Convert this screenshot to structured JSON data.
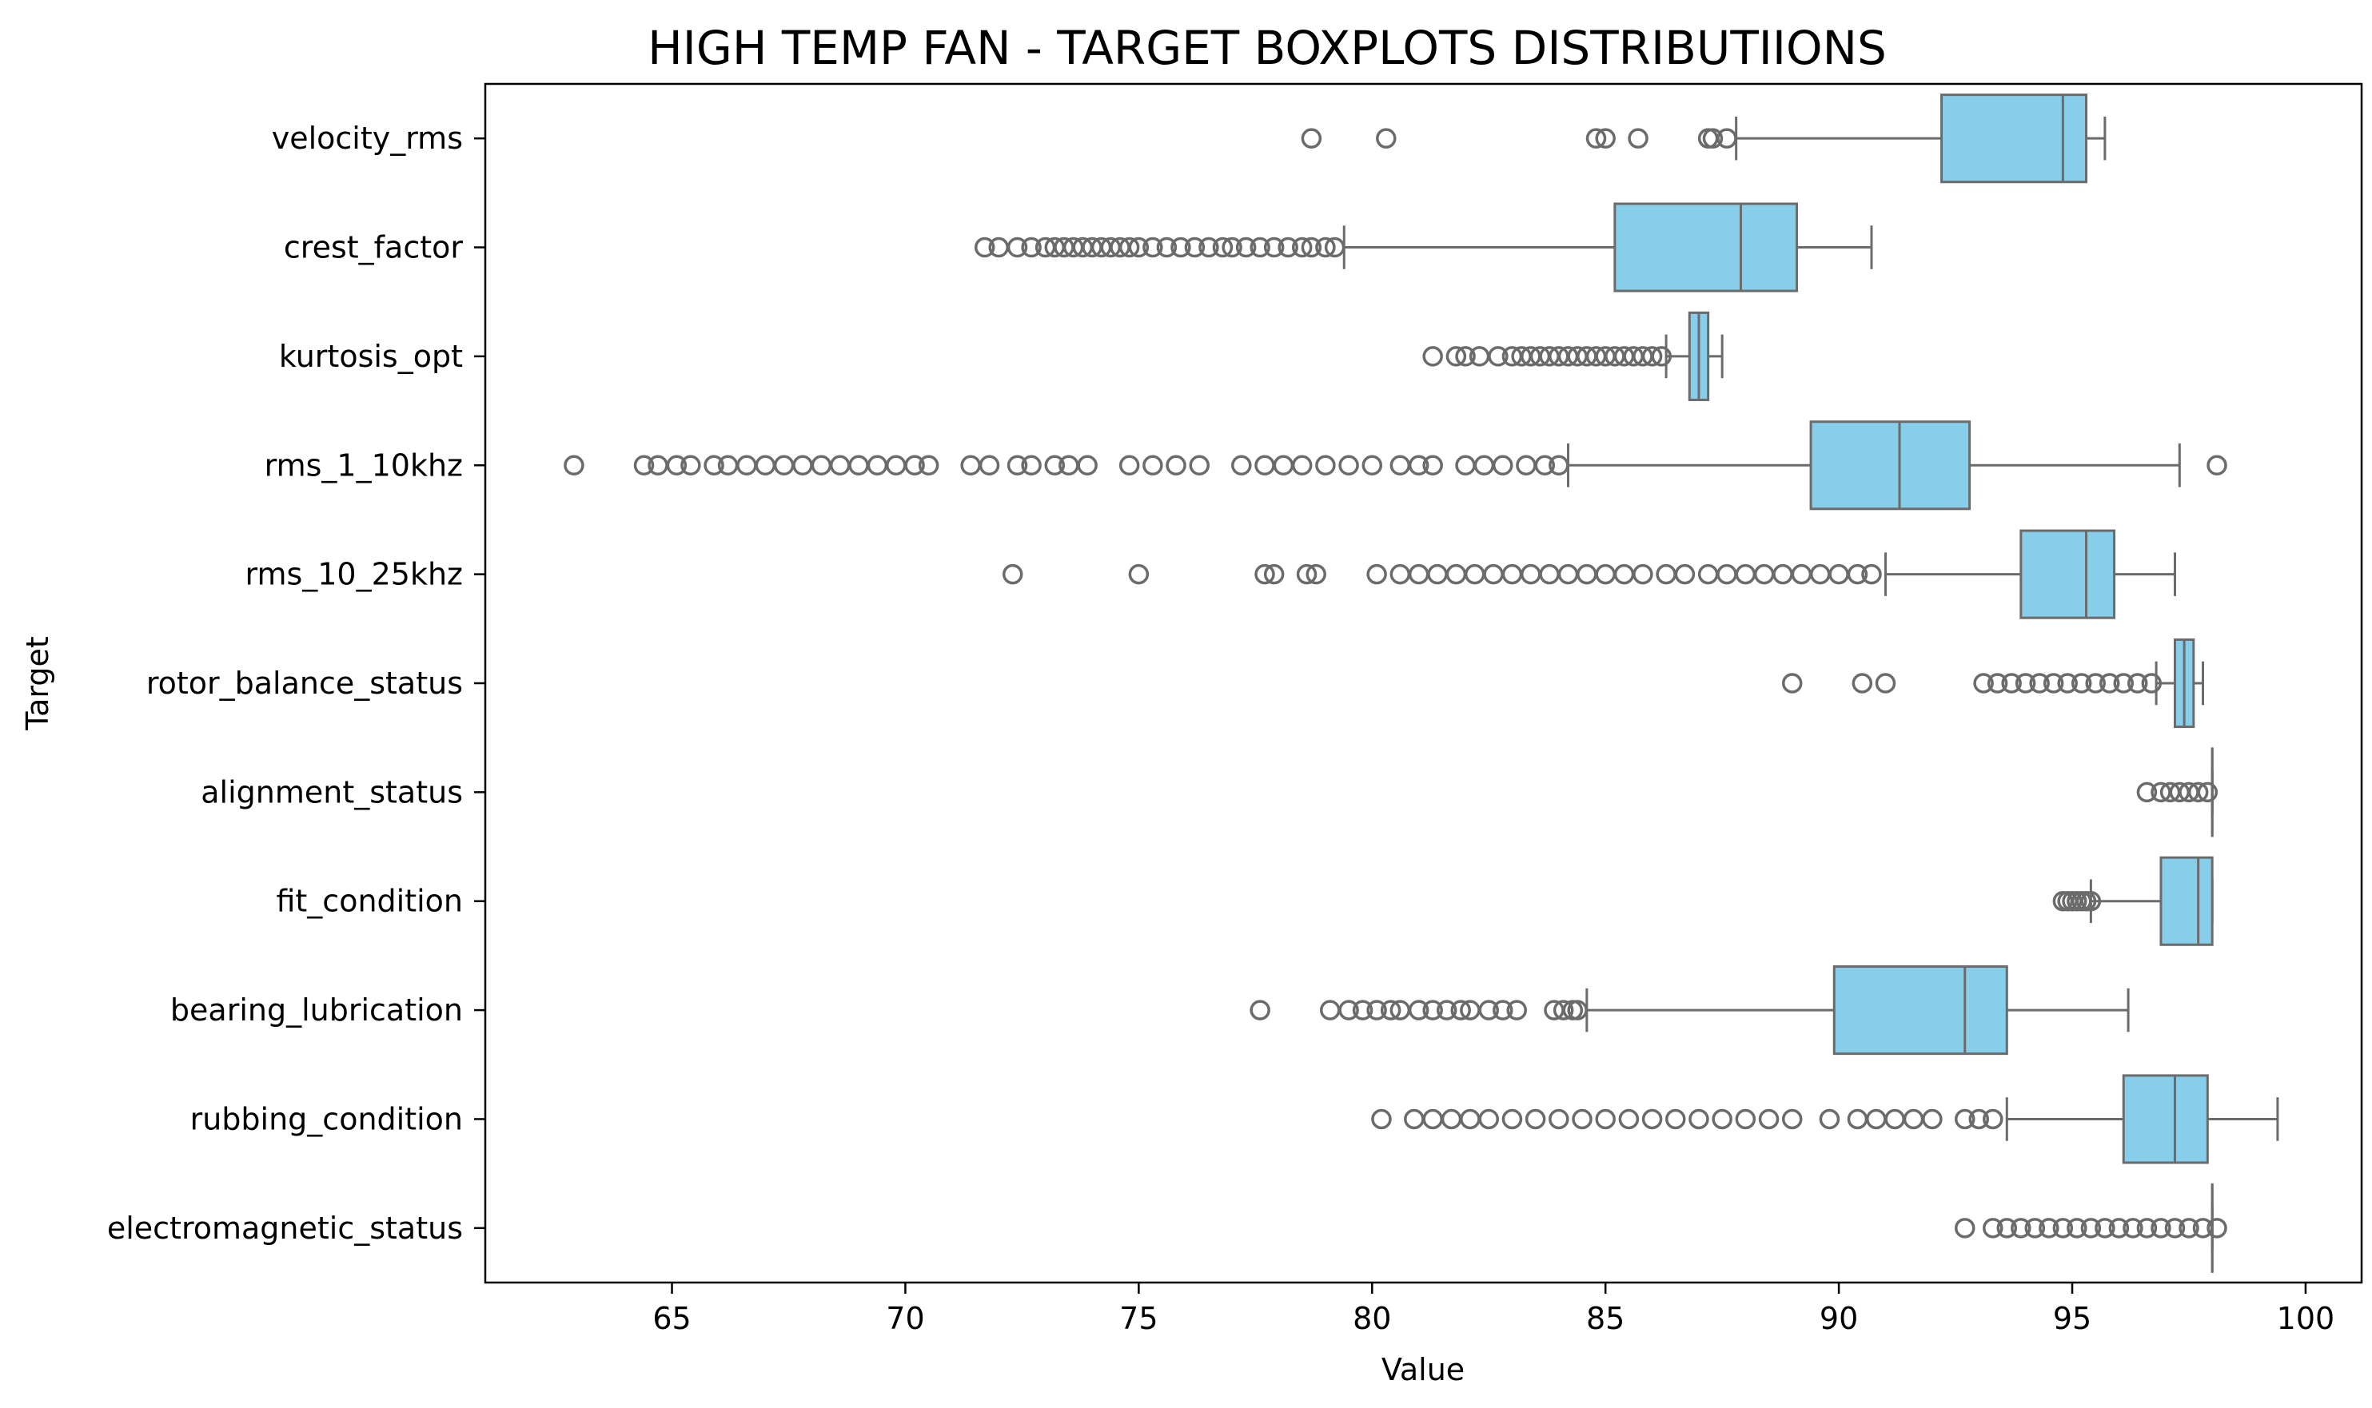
{
  "chart_data": {
    "type": "boxplot",
    "orientation": "horizontal",
    "title": "HIGH TEMP FAN - TARGET BOXPLOTS DISTRIBUTIIONS",
    "xlabel": "Value",
    "ylabel": "Target",
    "xlim": [
      61,
      101.2
    ],
    "xticks": [
      65,
      70,
      75,
      80,
      85,
      90,
      95,
      100
    ],
    "grid": false,
    "colors": {
      "box": "#87CEEB",
      "line": "#6b6b6b"
    },
    "categories": [
      "velocity_rms",
      "crest_factor",
      "kurtosis_opt",
      "rms_1_10khz",
      "rms_10_25khz",
      "rotor_balance_status",
      "alignment_status",
      "fit_condition",
      "bearing_lubrication",
      "rubbing_condition",
      "electromagnetic_status"
    ],
    "series": [
      {
        "category": "velocity_rms",
        "whislo": 87.8,
        "q1": 92.2,
        "med": 94.8,
        "q3": 95.3,
        "whishi": 95.7,
        "fliers": [
          78.7,
          80.3,
          84.8,
          85.0,
          85.7,
          87.2,
          87.3,
          87.6
        ]
      },
      {
        "category": "crest_factor",
        "whislo": 79.4,
        "q1": 85.2,
        "med": 87.9,
        "q3": 89.1,
        "whishi": 90.7,
        "fliers": [
          71.7,
          72.0,
          72.4,
          72.7,
          73.0,
          73.2,
          73.4,
          73.6,
          73.8,
          74.0,
          74.2,
          74.4,
          74.6,
          74.8,
          75.0,
          75.3,
          75.6,
          75.9,
          76.2,
          76.5,
          76.8,
          77.0,
          77.3,
          77.6,
          77.9,
          78.2,
          78.5,
          78.7,
          79.0,
          79.2
        ]
      },
      {
        "category": "kurtosis_opt",
        "whislo": 86.3,
        "q1": 86.8,
        "med": 87.0,
        "q3": 87.2,
        "whishi": 87.5,
        "fliers": [
          81.3,
          81.8,
          82.0,
          82.3,
          82.7,
          83.0,
          83.2,
          83.4,
          83.6,
          83.8,
          84.0,
          84.2,
          84.4,
          84.6,
          84.8,
          85.0,
          85.2,
          85.4,
          85.6,
          85.8,
          86.0,
          86.2
        ]
      },
      {
        "category": "rms_1_10khz",
        "whislo": 84.2,
        "q1": 89.4,
        "med": 91.3,
        "q3": 92.8,
        "whishi": 97.3,
        "fliers": [
          62.9,
          64.4,
          64.7,
          65.1,
          65.4,
          65.9,
          66.2,
          66.6,
          67.0,
          67.4,
          67.8,
          68.2,
          68.6,
          69.0,
          69.4,
          69.8,
          70.2,
          70.5,
          71.4,
          71.8,
          72.4,
          72.7,
          73.2,
          73.5,
          73.9,
          74.8,
          75.3,
          75.8,
          76.3,
          77.2,
          77.7,
          78.1,
          78.5,
          79.0,
          79.5,
          80.0,
          80.6,
          81.0,
          81.3,
          82.0,
          82.4,
          82.8,
          83.3,
          83.7,
          84.0,
          98.1
        ]
      },
      {
        "category": "rms_10_25khz",
        "whislo": 91.0,
        "q1": 93.9,
        "med": 95.3,
        "q3": 95.9,
        "whishi": 97.2,
        "fliers": [
          72.3,
          75.0,
          77.7,
          77.9,
          78.6,
          78.8,
          80.1,
          80.6,
          81.0,
          81.4,
          81.8,
          82.2,
          82.6,
          83.0,
          83.4,
          83.8,
          84.2,
          84.6,
          85.0,
          85.4,
          85.8,
          86.3,
          86.7,
          87.2,
          87.6,
          88.0,
          88.4,
          88.8,
          89.2,
          89.6,
          90.0,
          90.4,
          90.7
        ]
      },
      {
        "category": "rotor_balance_status",
        "whislo": 96.8,
        "q1": 97.2,
        "med": 97.4,
        "q3": 97.6,
        "whishi": 97.8,
        "fliers": [
          89.0,
          90.5,
          91.0,
          93.1,
          93.4,
          93.7,
          94.0,
          94.3,
          94.6,
          94.9,
          95.2,
          95.5,
          95.8,
          96.1,
          96.4,
          96.7
        ]
      },
      {
        "category": "alignment_status",
        "whislo": 98.0,
        "q1": 98.0,
        "med": 98.0,
        "q3": 98.0,
        "whishi": 98.0,
        "fliers": [
          96.6,
          96.9,
          97.1,
          97.3,
          97.5,
          97.7,
          97.9
        ]
      },
      {
        "category": "fit_condition",
        "whislo": 95.4,
        "q1": 96.9,
        "med": 97.7,
        "q3": 98.0,
        "whishi": 98.0,
        "fliers": [
          94.8,
          94.9,
          95.0,
          95.1,
          95.2,
          95.3,
          95.4
        ]
      },
      {
        "category": "bearing_lubrication",
        "whislo": 84.6,
        "q1": 89.9,
        "med": 92.7,
        "q3": 93.6,
        "whishi": 96.2,
        "fliers": [
          77.6,
          79.1,
          79.5,
          79.8,
          80.1,
          80.4,
          80.6,
          81.0,
          81.3,
          81.6,
          81.9,
          82.1,
          82.5,
          82.8,
          83.1,
          83.9,
          84.1,
          84.3,
          84.4
        ]
      },
      {
        "category": "rubbing_condition",
        "whislo": 93.6,
        "q1": 96.1,
        "med": 97.2,
        "q3": 97.9,
        "whishi": 99.4,
        "fliers": [
          80.2,
          80.9,
          81.3,
          81.7,
          82.1,
          82.5,
          83.0,
          83.5,
          84.0,
          84.5,
          85.0,
          85.5,
          86.0,
          86.5,
          87.0,
          87.5,
          88.0,
          88.5,
          89.0,
          89.8,
          90.4,
          90.8,
          91.2,
          91.6,
          92.0,
          92.7,
          93.0,
          93.3
        ]
      },
      {
        "category": "electromagnetic_status",
        "whislo": 98.0,
        "q1": 98.0,
        "med": 98.0,
        "q3": 98.0,
        "whishi": 98.0,
        "fliers": [
          92.7,
          93.3,
          93.6,
          93.9,
          94.2,
          94.5,
          94.8,
          95.1,
          95.4,
          95.7,
          96.0,
          96.3,
          96.6,
          96.9,
          97.2,
          97.5,
          97.8,
          98.1
        ]
      }
    ]
  }
}
